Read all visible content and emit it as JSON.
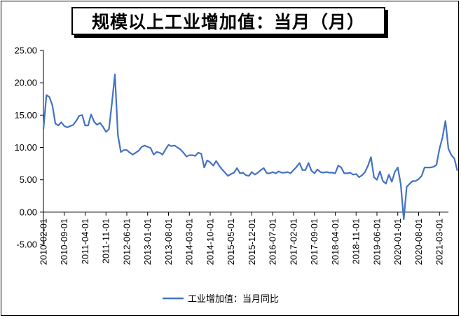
{
  "chart_data": {
    "type": "line",
    "title": "规模以上工业增加值：当月（月）",
    "xlabel": "",
    "ylabel": "",
    "ylim": [
      -5,
      25
    ],
    "yticks": [
      "-5.00",
      "0.00",
      "5.00",
      "10.00",
      "15.00",
      "20.00",
      "25.00"
    ],
    "x_tick_labels": [
      "2010-02-01",
      "2010-09-01",
      "2011-04-01",
      "2011-11-01",
      "2012-06-01",
      "2013-01-01",
      "2013-08-01",
      "2014-03-01",
      "2014-10-01",
      "2015-05-01",
      "2015-12-01",
      "2016-07-01",
      "2017-02-01",
      "2017-09-01",
      "2018-04-01",
      "2018-11-01",
      "2019-06-01",
      "2020-01-01",
      "2020-08-01",
      "2021-03-01"
    ],
    "x_start": "2010-02",
    "x_end": "2021-06",
    "grid": false,
    "legend_position": "bottom",
    "series": [
      {
        "name": "工业增加值：当月同比",
        "color": "#4472C4",
        "values": [
          12.8,
          18.1,
          17.8,
          16.5,
          13.7,
          13.4,
          13.9,
          13.3,
          13.1,
          13.3,
          13.5,
          14.1,
          14.9,
          15.0,
          13.4,
          13.4,
          15.1,
          14.0,
          13.5,
          13.8,
          13.2,
          12.4,
          12.8,
          16.9,
          21.3,
          11.9,
          9.3,
          9.6,
          9.6,
          9.2,
          8.9,
          9.2,
          9.5,
          10.1,
          10.3,
          10.1,
          9.9,
          8.9,
          9.3,
          9.2,
          8.9,
          9.7,
          10.4,
          10.2,
          10.3,
          10.0,
          9.7,
          9.2,
          8.6,
          8.8,
          8.8,
          8.7,
          9.2,
          9.0,
          6.9,
          8.0,
          7.7,
          7.2,
          7.9,
          7.2,
          6.6,
          6.1,
          5.6,
          5.9,
          6.1,
          6.8,
          6.0,
          6.1,
          5.7,
          5.6,
          6.2,
          5.8,
          6.1,
          6.5,
          6.8,
          6.0,
          6.0,
          6.2,
          6.0,
          6.3,
          6.1,
          6.1,
          6.2,
          6.0,
          6.5,
          7.0,
          7.6,
          6.5,
          6.5,
          7.6,
          6.4,
          6.0,
          6.6,
          6.2,
          6.1,
          6.2,
          6.1,
          6.1,
          6.0,
          7.2,
          6.9,
          6.0,
          6.0,
          6.1,
          5.8,
          5.9,
          5.4,
          5.7,
          6.2,
          7.2,
          8.5,
          5.4,
          5.0,
          6.3,
          4.8,
          4.4,
          5.8,
          4.7,
          6.2,
          6.9,
          4.3,
          -1.1,
          3.9,
          4.4,
          4.8,
          4.8,
          5.1,
          5.6,
          6.9,
          6.9,
          6.9,
          7.0,
          7.3,
          9.8,
          11.5,
          14.1,
          9.8,
          8.8,
          8.3,
          6.4
        ]
      }
    ]
  }
}
